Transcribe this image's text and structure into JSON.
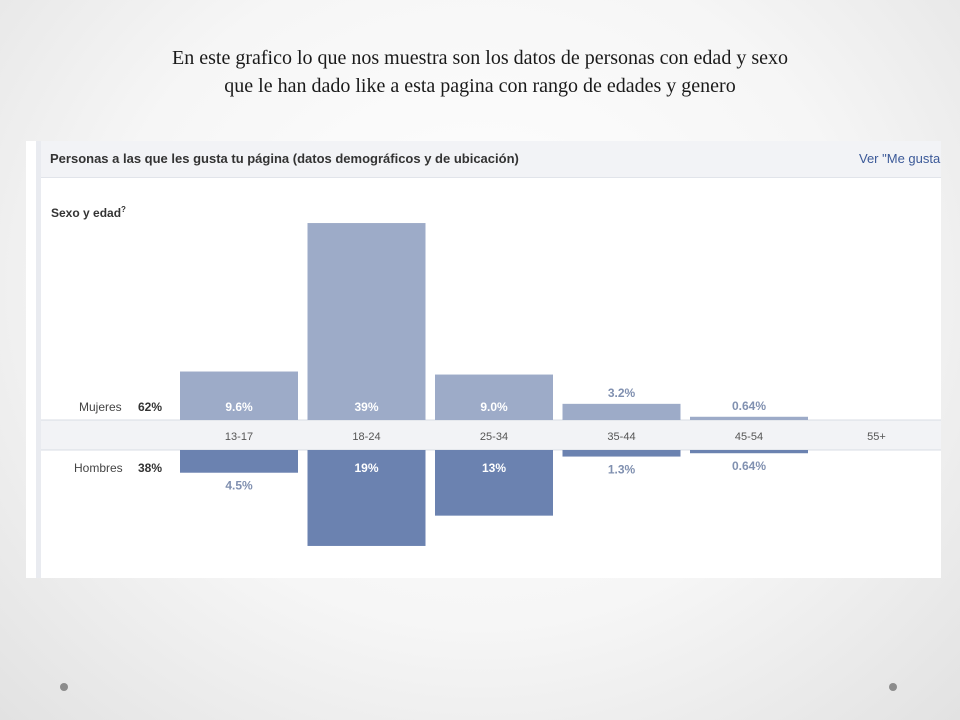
{
  "caption": {
    "line1": "En este  grafico lo  que  nos muestra son los datos   de personas  con edad  y sexo",
    "line2": "que le   han  dado like a esta  pagina  con rango de edades  y genero"
  },
  "panel": {
    "header_title": "Personas a las que les gusta tu página (datos demográficos y de ubicación)",
    "header_link": "Ver \"Me gusta",
    "section_label": "Sexo y edad",
    "section_label_sup": "?"
  },
  "colors": {
    "women_bar": "#9dabc8",
    "men_bar": "#6b82b0",
    "axis_band": "#f2f3f6",
    "link": "#3b5998"
  },
  "chart_data": {
    "type": "bar",
    "categories": [
      "13-17",
      "18-24",
      "25-34",
      "35-44",
      "45-54",
      "55+"
    ],
    "series": [
      {
        "name": "Mujeres",
        "total_label": "62%",
        "direction": "up",
        "values": [
          9.6,
          39,
          9.0,
          3.2,
          0.64,
          0
        ],
        "labels": [
          "9.6%",
          "39%",
          "9.0%",
          "3.2%",
          "0.64%",
          ""
        ]
      },
      {
        "name": "Hombres",
        "total_label": "38%",
        "direction": "down",
        "values": [
          4.5,
          19,
          13,
          1.3,
          0.64,
          0
        ],
        "labels": [
          "4.5%",
          "19%",
          "13%",
          "1.3%",
          "0.64%",
          ""
        ]
      }
    ],
    "unit": "%"
  }
}
